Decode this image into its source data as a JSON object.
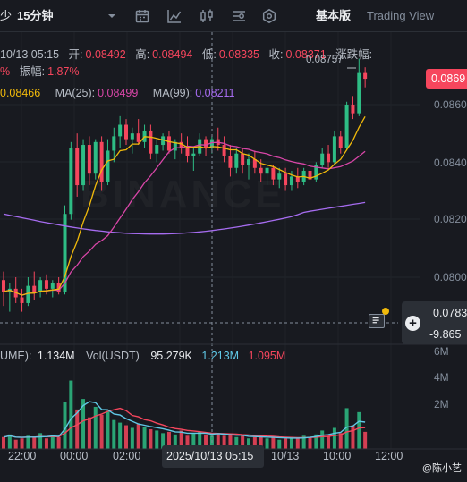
{
  "toolbar": {
    "left_fragment": "少",
    "interval": "15分钟",
    "mode_basic": "基本版",
    "mode_tradingview": "Trading View",
    "icons": [
      "chevron-down-icon",
      "calendar-icon",
      "indicator-icon",
      "candle-type-icon",
      "settings-sliders-icon",
      "hexagon-settings-icon"
    ]
  },
  "ohlc": {
    "time": "10/13 05:15",
    "open_label": "开:",
    "open": "0.08492",
    "high_label": "高:",
    "high": "0.08494",
    "low_label": "低:",
    "low": "0.08335",
    "close_label": "收:",
    "close": "0.08371",
    "change_label": "涨跌幅:",
    "pct_fragment": "%",
    "amp_label": "振幅:",
    "amp": "1.87%"
  },
  "ma": {
    "ma7_value": "0.08466",
    "ma25_label": "MA(25):",
    "ma25_value": "0.08499",
    "ma99_label": "MA(99):",
    "ma99_value": "0.08211",
    "colors": {
      "ma7": "#f0b90b",
      "ma25": "#d946a8",
      "ma99": "#a66cf0"
    }
  },
  "price_axis": {
    "labels": [
      "0.0860",
      "0.0840",
      "0.0820",
      "0.0800"
    ],
    "current_price": "0.0869",
    "crosshair_price": "0.0783",
    "crosshair_change": "-9.865",
    "high_marker": "0.08757"
  },
  "volume": {
    "label_fragment": "UME):",
    "value1": "1.134M",
    "usdt_label": "Vol(USDT)",
    "usdt_value": "95.279K",
    "value2": "1.213M",
    "value3": "1.095M",
    "axis": [
      "6M",
      "4M",
      "2M"
    ]
  },
  "time_axis": {
    "labels": [
      "22:00",
      "00:00",
      "02:00",
      "10/13",
      "10:00",
      "12:00"
    ],
    "crosshair_time": "2025/10/13 05:15"
  },
  "watermark": "BINANCE",
  "user": "@陈小艺",
  "colors": {
    "up": "#2ebd85",
    "down": "#f6465d",
    "bg": "#181a20",
    "text": "#b7bdc6",
    "accent": "#f0b90b"
  },
  "chart_data": {
    "type": "candlestick",
    "interval": "15m",
    "y_range": [
      0.0783,
      0.0876
    ],
    "volume_range": [
      0,
      6000000
    ],
    "candles": [
      {
        "o": 0.0799,
        "h": 0.0802,
        "l": 0.079,
        "c": 0.0795
      },
      {
        "o": 0.0795,
        "h": 0.0798,
        "l": 0.0788,
        "c": 0.0796
      },
      {
        "o": 0.0796,
        "h": 0.08,
        "l": 0.0791,
        "c": 0.0793
      },
      {
        "o": 0.0793,
        "h": 0.0796,
        "l": 0.0788,
        "c": 0.0791
      },
      {
        "o": 0.0791,
        "h": 0.08,
        "l": 0.079,
        "c": 0.0797
      },
      {
        "o": 0.0797,
        "h": 0.0802,
        "l": 0.0792,
        "c": 0.0795
      },
      {
        "o": 0.0795,
        "h": 0.08,
        "l": 0.0793,
        "c": 0.0799
      },
      {
        "o": 0.0799,
        "h": 0.0801,
        "l": 0.0794,
        "c": 0.0796
      },
      {
        "o": 0.0796,
        "h": 0.0799,
        "l": 0.0793,
        "c": 0.0798
      },
      {
        "o": 0.0798,
        "h": 0.08,
        "l": 0.0794,
        "c": 0.0795
      },
      {
        "o": 0.0795,
        "h": 0.0825,
        "l": 0.0794,
        "c": 0.0822
      },
      {
        "o": 0.0822,
        "h": 0.0847,
        "l": 0.082,
        "c": 0.0845
      },
      {
        "o": 0.0845,
        "h": 0.085,
        "l": 0.0828,
        "c": 0.0832
      },
      {
        "o": 0.0832,
        "h": 0.0848,
        "l": 0.083,
        "c": 0.0846
      },
      {
        "o": 0.0846,
        "h": 0.0849,
        "l": 0.0832,
        "c": 0.0836
      },
      {
        "o": 0.0836,
        "h": 0.0848,
        "l": 0.0834,
        "c": 0.0847
      },
      {
        "o": 0.0847,
        "h": 0.0849,
        "l": 0.083,
        "c": 0.0833
      },
      {
        "o": 0.0833,
        "h": 0.0848,
        "l": 0.0832,
        "c": 0.0844
      },
      {
        "o": 0.0844,
        "h": 0.0852,
        "l": 0.084,
        "c": 0.0849
      },
      {
        "o": 0.0849,
        "h": 0.0856,
        "l": 0.0845,
        "c": 0.0853
      },
      {
        "o": 0.0853,
        "h": 0.0855,
        "l": 0.0846,
        "c": 0.0848
      },
      {
        "o": 0.0848,
        "h": 0.0852,
        "l": 0.0843,
        "c": 0.085
      },
      {
        "o": 0.085,
        "h": 0.0855,
        "l": 0.0846,
        "c": 0.0847
      },
      {
        "o": 0.0847,
        "h": 0.0853,
        "l": 0.0845,
        "c": 0.0851
      },
      {
        "o": 0.0851,
        "h": 0.0853,
        "l": 0.0841,
        "c": 0.0843
      },
      {
        "o": 0.0843,
        "h": 0.0848,
        "l": 0.084,
        "c": 0.0846
      },
      {
        "o": 0.0846,
        "h": 0.085,
        "l": 0.0844,
        "c": 0.0849
      },
      {
        "o": 0.0849,
        "h": 0.0851,
        "l": 0.0843,
        "c": 0.0844
      },
      {
        "o": 0.0844,
        "h": 0.0848,
        "l": 0.0841,
        "c": 0.0847
      },
      {
        "o": 0.0847,
        "h": 0.085,
        "l": 0.0843,
        "c": 0.0845
      },
      {
        "o": 0.0845,
        "h": 0.0849,
        "l": 0.084,
        "c": 0.0842
      },
      {
        "o": 0.0842,
        "h": 0.0845,
        "l": 0.0837,
        "c": 0.0843
      },
      {
        "o": 0.0843,
        "h": 0.085,
        "l": 0.0842,
        "c": 0.0848
      },
      {
        "o": 0.0848,
        "h": 0.0849,
        "l": 0.0842,
        "c": 0.0845
      },
      {
        "o": 0.0845,
        "h": 0.0849,
        "l": 0.0843,
        "c": 0.0848
      },
      {
        "o": 0.0848,
        "h": 0.0852,
        "l": 0.0844,
        "c": 0.0846
      },
      {
        "o": 0.0846,
        "h": 0.0849,
        "l": 0.084,
        "c": 0.0842
      },
      {
        "o": 0.0842,
        "h": 0.0846,
        "l": 0.0835,
        "c": 0.0838
      },
      {
        "o": 0.0838,
        "h": 0.0845,
        "l": 0.0836,
        "c": 0.0843
      },
      {
        "o": 0.0843,
        "h": 0.0845,
        "l": 0.0836,
        "c": 0.0839
      },
      {
        "o": 0.0839,
        "h": 0.0843,
        "l": 0.0834,
        "c": 0.0841
      },
      {
        "o": 0.0841,
        "h": 0.0844,
        "l": 0.0836,
        "c": 0.0838
      },
      {
        "o": 0.0838,
        "h": 0.0841,
        "l": 0.0833,
        "c": 0.0836
      },
      {
        "o": 0.0836,
        "h": 0.084,
        "l": 0.0832,
        "c": 0.0838
      },
      {
        "o": 0.0838,
        "h": 0.0839,
        "l": 0.0832,
        "c": 0.0834
      },
      {
        "o": 0.0834,
        "h": 0.0838,
        "l": 0.0831,
        "c": 0.0836
      },
      {
        "o": 0.0836,
        "h": 0.0838,
        "l": 0.083,
        "c": 0.0832
      },
      {
        "o": 0.0832,
        "h": 0.0837,
        "l": 0.083,
        "c": 0.0835
      },
      {
        "o": 0.0835,
        "h": 0.0838,
        "l": 0.0831,
        "c": 0.0833
      },
      {
        "o": 0.0833,
        "h": 0.0838,
        "l": 0.0832,
        "c": 0.0837
      },
      {
        "o": 0.0837,
        "h": 0.084,
        "l": 0.0833,
        "c": 0.0834
      },
      {
        "o": 0.0834,
        "h": 0.084,
        "l": 0.0833,
        "c": 0.0839
      },
      {
        "o": 0.0839,
        "h": 0.0845,
        "l": 0.0838,
        "c": 0.0843
      },
      {
        "o": 0.0843,
        "h": 0.0846,
        "l": 0.0838,
        "c": 0.084
      },
      {
        "o": 0.084,
        "h": 0.0851,
        "l": 0.0839,
        "c": 0.0849
      },
      {
        "o": 0.0849,
        "h": 0.0851,
        "l": 0.0843,
        "c": 0.0845
      },
      {
        "o": 0.0845,
        "h": 0.0861,
        "l": 0.0844,
        "c": 0.086
      },
      {
        "o": 0.086,
        "h": 0.0863,
        "l": 0.0855,
        "c": 0.0857
      },
      {
        "o": 0.0857,
        "h": 0.0876,
        "l": 0.0856,
        "c": 0.0871
      },
      {
        "o": 0.0871,
        "h": 0.0873,
        "l": 0.0866,
        "c": 0.0869
      }
    ],
    "volumes": [
      0.9,
      1.1,
      0.7,
      0.8,
      1.0,
      0.9,
      1.2,
      0.8,
      1.0,
      0.9,
      3.6,
      5.2,
      3.0,
      3.8,
      2.4,
      3.2,
      2.6,
      2.9,
      2.2,
      2.0,
      1.8,
      1.6,
      1.9,
      1.7,
      1.5,
      1.4,
      1.2,
      1.3,
      1.1,
      1.4,
      1.0,
      1.2,
      1.3,
      1.1,
      1.0,
      1.2,
      1.0,
      1.1,
      0.9,
      1.0,
      0.8,
      0.9,
      1.0,
      0.8,
      0.9,
      0.7,
      0.8,
      0.9,
      0.8,
      1.0,
      0.9,
      1.1,
      1.4,
      1.0,
      1.6,
      1.2,
      3.1,
      1.8,
      2.8,
      1.3
    ]
  }
}
